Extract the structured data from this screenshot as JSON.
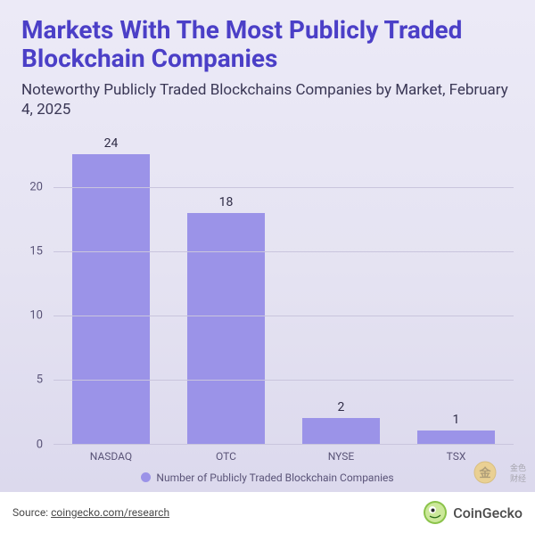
{
  "title": "Markets With The Most Publicly Traded Blockchain Companies",
  "title_color": "#4b3fc7",
  "subtitle": "Noteworthy Publicly Traded Blockchains Companies by Market, February 4, 2025",
  "subtitle_color": "#3a3755",
  "chart": {
    "type": "bar",
    "categories": [
      "NASDAQ",
      "OTC",
      "NYSE",
      "TSX"
    ],
    "values": [
      24,
      18,
      2,
      1
    ],
    "bar_color": "#9b93e8",
    "value_label_color": "#2e2b45",
    "x_label_color": "#5a5478",
    "y_label_color": "#5a5478",
    "ylim_min": 0,
    "ylim_max": 24,
    "yticks": [
      0,
      5,
      10,
      15,
      20
    ],
    "grid_color": "#c9c5dd",
    "axis_color": "#9a95b8",
    "label_fontsize": 12,
    "value_fontsize": 14,
    "bar_width_pct": 76
  },
  "legend": {
    "swatch_color": "#9b93e8",
    "text": "Number of Publicly Traded Blockchain Companies",
    "text_color": "#5a5478"
  },
  "footer": {
    "source_prefix": "Source: ",
    "source_link": "coingecko.com/research",
    "brand_name": "CoinGecko"
  },
  "watermark_text": "金色财经"
}
